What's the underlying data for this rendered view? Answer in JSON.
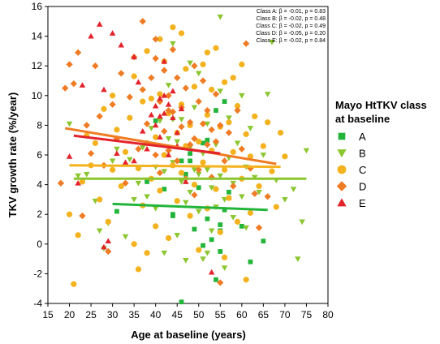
{
  "chart_data": {
    "type": "scatter",
    "xlabel": "Age at baseline (years)",
    "ylabel": "TKV growth rate (%/year)",
    "xlim": [
      15,
      80
    ],
    "ylim": [
      -4,
      16
    ],
    "xticks": [
      "15",
      "20",
      "25",
      "30",
      "35",
      "40",
      "45",
      "50",
      "55",
      "60",
      "65",
      "70",
      "75",
      "80"
    ],
    "yticks": [
      "-4",
      "-2",
      "0",
      "2",
      "4",
      "6",
      "8",
      "10",
      "12",
      "14",
      "16"
    ],
    "grid": false,
    "legend": {
      "title_lines": [
        "Mayo HtTKV class",
        "at baseline"
      ],
      "placement": "right"
    },
    "stats_lines": [
      "Class A: β = -0.01, p = 0.83",
      "Class B: β = -0.02, p = 0.48",
      "Class C: β = -0.02, p = 0.49",
      "Class D: β = -0.05, p = 0.20",
      "Class E: β = -0.02, p = 0.84"
    ],
    "series": [
      {
        "name": "A",
        "marker": "square",
        "color": "#22b53a",
        "trend": {
          "x": [
            30,
            66
          ],
          "y": [
            2.7,
            2.3
          ]
        },
        "points": [
          [
            31,
            2.2
          ],
          [
            38,
            4.2
          ],
          [
            40,
            8.3
          ],
          [
            42,
            3.7
          ],
          [
            44,
            1.9
          ],
          [
            46,
            5.6
          ],
          [
            47,
            4.7
          ],
          [
            48,
            6.1
          ],
          [
            49,
            1.0
          ],
          [
            50,
            3.8
          ],
          [
            51,
            6.8
          ],
          [
            51,
            -0.1
          ],
          [
            52,
            7.0
          ],
          [
            52,
            1.7
          ],
          [
            53,
            0.3
          ],
          [
            54,
            -2.4
          ],
          [
            54,
            9.0
          ],
          [
            55,
            -0.5
          ],
          [
            55,
            1.3
          ],
          [
            56,
            9.6
          ],
          [
            56,
            2.3
          ],
          [
            57,
            3.5
          ],
          [
            57,
            3.1
          ],
          [
            60,
            1.2
          ],
          [
            62,
            -1.2
          ],
          [
            65,
            0.2
          ],
          [
            46,
            -3.9
          ],
          [
            44,
            2.0
          ],
          [
            48,
            5.6
          ],
          [
            55,
            0.9
          ]
        ]
      },
      {
        "name": "B",
        "marker": "triangle-down",
        "color": "#8bc630",
        "trend": {
          "x": [
            21,
            75
          ],
          "y": [
            4.4,
            4.4
          ]
        },
        "points": [
          [
            20,
            8.1
          ],
          [
            22,
            4.6
          ],
          [
            24,
            4.7
          ],
          [
            26,
            2.9
          ],
          [
            27,
            0.9
          ],
          [
            28,
            -0.3
          ],
          [
            29,
            1.4
          ],
          [
            30,
            5.6
          ],
          [
            31,
            6.4
          ],
          [
            33,
            0.5
          ],
          [
            34,
            5.7
          ],
          [
            35,
            3.0
          ],
          [
            36,
            4.1
          ],
          [
            37,
            6.5
          ],
          [
            38,
            3.2
          ],
          [
            39,
            7.8
          ],
          [
            40,
            5.2
          ],
          [
            40,
            2.4
          ],
          [
            41,
            8.3
          ],
          [
            42,
            4.9
          ],
          [
            42,
            -0.6
          ],
          [
            43,
            7.1
          ],
          [
            43,
            10.7
          ],
          [
            44,
            5.5
          ],
          [
            44,
            13.5
          ],
          [
            45,
            6.9
          ],
          [
            45,
            0.6
          ],
          [
            46,
            4.2
          ],
          [
            46,
            8.4
          ],
          [
            47,
            2.8
          ],
          [
            47,
            -1.1
          ],
          [
            48,
            6.5
          ],
          [
            48,
            3.5
          ],
          [
            49,
            5.0
          ],
          [
            49,
            9.2
          ],
          [
            50,
            4.7
          ],
          [
            50,
            2.2
          ],
          [
            51,
            6.1
          ],
          [
            51,
            -1.0
          ],
          [
            52,
            5.0
          ],
          [
            52,
            8.1
          ],
          [
            53,
            3.8
          ],
          [
            53,
            0.9
          ],
          [
            54,
            6.7
          ],
          [
            54,
            2.5
          ],
          [
            55,
            4.6
          ],
          [
            55,
            10.3
          ],
          [
            56,
            3.0
          ],
          [
            56,
            -1.6
          ],
          [
            57,
            5.8
          ],
          [
            57,
            8.5
          ],
          [
            58,
            4.1
          ],
          [
            58,
            1.8
          ],
          [
            59,
            6.8
          ],
          [
            60,
            3.2
          ],
          [
            60,
            10.0
          ],
          [
            61,
            5.2
          ],
          [
            61,
            1.1
          ],
          [
            62,
            7.8
          ],
          [
            63,
            4.5
          ],
          [
            64,
            3.5
          ],
          [
            65,
            6.0
          ],
          [
            66,
            10.1
          ],
          [
            67,
            13.6
          ],
          [
            68,
            4.3
          ],
          [
            70,
            3.0
          ],
          [
            72,
            3.7
          ],
          [
            73,
            -1.0
          ],
          [
            74,
            1.5
          ],
          [
            75,
            6.3
          ],
          [
            55,
            15.3
          ],
          [
            48,
            12.2
          ],
          [
            50,
            11.5
          ],
          [
            44,
            8.4
          ],
          [
            52,
            -0.6
          ]
        ]
      },
      {
        "name": "C",
        "marker": "circle",
        "color": "#f4b21e",
        "trend": {
          "x": [
            20,
            69
          ],
          "y": [
            5.3,
            5.2
          ]
        },
        "points": [
          [
            20,
            2.0
          ],
          [
            21,
            -2.7
          ],
          [
            22,
            0.6
          ],
          [
            23,
            4.2
          ],
          [
            24,
            7.3
          ],
          [
            25,
            5.3
          ],
          [
            26,
            6.8
          ],
          [
            27,
            3.0
          ],
          [
            28,
            9.1
          ],
          [
            29,
            1.5
          ],
          [
            30,
            10.0
          ],
          [
            30,
            5.0
          ],
          [
            31,
            7.7
          ],
          [
            32,
            3.9
          ],
          [
            33,
            6.2
          ],
          [
            34,
            8.5
          ],
          [
            35,
            0.0
          ],
          [
            35,
            11.3
          ],
          [
            36,
            -1.7
          ],
          [
            36,
            5.1
          ],
          [
            37,
            9.6
          ],
          [
            37,
            2.6
          ],
          [
            38,
            6.8
          ],
          [
            38,
            13.0
          ],
          [
            39,
            4.4
          ],
          [
            39,
            9.8
          ],
          [
            40,
            1.2
          ],
          [
            40,
            7.2
          ],
          [
            41,
            10.1
          ],
          [
            41,
            3.6
          ],
          [
            42,
            6.0
          ],
          [
            42,
            12.3
          ],
          [
            43,
            8.8
          ],
          [
            43,
            0.4
          ],
          [
            44,
            5.3
          ],
          [
            44,
            14.6
          ],
          [
            45,
            7.5
          ],
          [
            45,
            2.9
          ],
          [
            46,
            9.4
          ],
          [
            46,
            4.8
          ],
          [
            47,
            11.8
          ],
          [
            47,
            6.6
          ],
          [
            48,
            1.9
          ],
          [
            48,
            8.0
          ],
          [
            49,
            10.6
          ],
          [
            49,
            4.0
          ],
          [
            50,
            6.9
          ],
          [
            50,
            -0.4
          ],
          [
            51,
            12.1
          ],
          [
            51,
            5.5
          ],
          [
            52,
            8.7
          ],
          [
            52,
            2.4
          ],
          [
            53,
            10.4
          ],
          [
            53,
            6.3
          ],
          [
            54,
            3.7
          ],
          [
            54,
            13.2
          ],
          [
            55,
            7.9
          ],
          [
            55,
            0.8
          ],
          [
            56,
            5.0
          ],
          [
            56,
            10.9
          ],
          [
            57,
            8.2
          ],
          [
            57,
            3.1
          ],
          [
            58,
            11.2
          ],
          [
            58,
            6.2
          ],
          [
            59,
            1.5
          ],
          [
            59,
            9.3
          ],
          [
            60,
            4.4
          ],
          [
            60,
            12.1
          ],
          [
            61,
            7.4
          ],
          [
            61,
            -2.4
          ],
          [
            62,
            5.9
          ],
          [
            62,
            2.1
          ],
          [
            63,
            8.6
          ],
          [
            64,
            3.9
          ],
          [
            65,
            6.6
          ],
          [
            66,
            8.2
          ],
          [
            67,
            4.9
          ],
          [
            68,
            2.5
          ],
          [
            69,
            7.5
          ],
          [
            70,
            5.9
          ],
          [
            41,
            13.8
          ],
          [
            46,
            14.2
          ],
          [
            52,
            12.9
          ],
          [
            38,
            -0.6
          ],
          [
            56,
            -0.9
          ]
        ]
      },
      {
        "name": "D",
        "marker": "diamond",
        "color": "#ef7b24",
        "trend": {
          "x": [
            19,
            68
          ],
          "y": [
            7.8,
            5.4
          ]
        },
        "points": [
          [
            18,
            4.1
          ],
          [
            19,
            10.5
          ],
          [
            20,
            12.1
          ],
          [
            21,
            10.8
          ],
          [
            22,
            12.9
          ],
          [
            23,
            1.9
          ],
          [
            24,
            8.0
          ],
          [
            25,
            6.1
          ],
          [
            26,
            12.0
          ],
          [
            27,
            8.6
          ],
          [
            28,
            5.3
          ],
          [
            29,
            -0.5
          ],
          [
            30,
            9.4
          ],
          [
            31,
            7.1
          ],
          [
            32,
            11.5
          ],
          [
            33,
            4.1
          ],
          [
            34,
            9.9
          ],
          [
            35,
            12.6
          ],
          [
            36,
            6.4
          ],
          [
            37,
            15.0
          ],
          [
            37,
            10.4
          ],
          [
            38,
            8.1
          ],
          [
            39,
            11.2
          ],
          [
            40,
            6.0
          ],
          [
            40,
            12.5
          ],
          [
            41,
            9.6
          ],
          [
            41,
            4.8
          ],
          [
            42,
            11.7
          ],
          [
            42,
            7.6
          ],
          [
            43,
            10.0
          ],
          [
            43,
            6.3
          ],
          [
            44,
            8.9
          ],
          [
            44,
            13.1
          ],
          [
            45,
            5.6
          ],
          [
            45,
            11.2
          ],
          [
            46,
            7.9
          ],
          [
            46,
            9.2
          ],
          [
            47,
            4.4
          ],
          [
            47,
            10.5
          ],
          [
            48,
            8.2
          ],
          [
            48,
            6.7
          ],
          [
            49,
            12.0
          ],
          [
            49,
            7.1
          ],
          [
            50,
            9.6
          ],
          [
            50,
            5.0
          ],
          [
            51,
            8.1
          ],
          [
            51,
            11.0
          ],
          [
            52,
            6.7
          ],
          [
            52,
            9.0
          ],
          [
            53,
            7.7
          ],
          [
            53,
            4.5
          ],
          [
            54,
            6.9
          ],
          [
            54,
            10.1
          ],
          [
            55,
            -2.6
          ],
          [
            55,
            8.0
          ],
          [
            56,
            5.6
          ],
          [
            57,
            7.5
          ],
          [
            58,
            3.9
          ],
          [
            59,
            9.0
          ],
          [
            60,
            6.4
          ],
          [
            61,
            13.5
          ],
          [
            62,
            5.1
          ],
          [
            63,
            3.4
          ],
          [
            64,
            1.1
          ],
          [
            66,
            3.2
          ],
          [
            40,
            13.8
          ],
          [
            43,
            9.0
          ],
          [
            49,
            3.3
          ]
        ]
      },
      {
        "name": "E",
        "marker": "triangle-up",
        "color": "#e3232b",
        "trend": {
          "x": [
            21,
            55
          ],
          "y": [
            7.3,
            6.1
          ]
        },
        "points": [
          [
            20,
            5.9
          ],
          [
            22,
            4.1
          ],
          [
            23,
            10.7
          ],
          [
            25,
            14.0
          ],
          [
            27,
            14.8
          ],
          [
            28,
            10.4
          ],
          [
            29,
            0.2
          ],
          [
            30,
            14.2
          ],
          [
            31,
            6.1
          ],
          [
            32,
            13.4
          ],
          [
            33,
            5.5
          ],
          [
            35,
            5.6
          ],
          [
            36,
            10.9
          ],
          [
            37,
            7.6
          ],
          [
            38,
            6.4
          ],
          [
            39,
            8.7
          ],
          [
            40,
            9.3
          ],
          [
            40,
            8.0
          ],
          [
            41,
            9.8
          ],
          [
            41,
            7.2
          ],
          [
            42,
            12.3
          ],
          [
            42,
            8.8
          ],
          [
            43,
            9.4
          ],
          [
            43,
            6.0
          ],
          [
            44,
            8.5
          ],
          [
            44,
            10.3
          ],
          [
            45,
            6.6
          ],
          [
            45,
            7.5
          ],
          [
            46,
            9.1
          ],
          [
            47,
            4.2
          ],
          [
            53,
            -1.9
          ],
          [
            28,
            -0.2
          ],
          [
            35,
            12.6
          ],
          [
            42,
            10.0
          ],
          [
            41,
            8.6
          ]
        ]
      }
    ]
  }
}
